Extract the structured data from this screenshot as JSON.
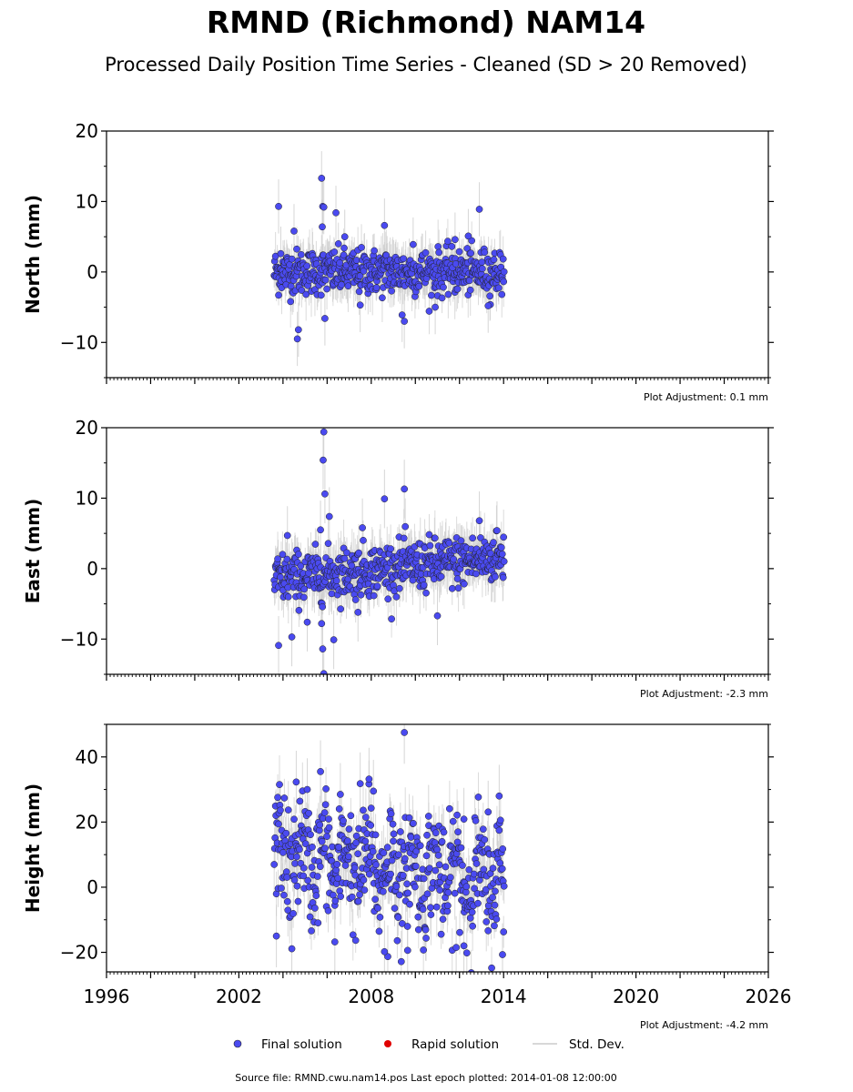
{
  "title": "RMND (Richmond) NAM14",
  "subtitle": "Processed Daily Position Time Series - Cleaned (SD > 20 Removed)",
  "footer": "Source file: RMND.cwu.nam14.pos  Last epoch plotted: 2014-01-08 12:00:00",
  "legend": {
    "final": "Final solution",
    "rapid": "Rapid solution",
    "std": "Std. Dev."
  },
  "colors": {
    "final": "#4a4af0",
    "rapid": "#e00000",
    "std": "#cccccc"
  },
  "chart_data": [
    {
      "type": "scatter",
      "ylabel": "North (mm)",
      "adjustment": "Plot Adjustment: 0.1 mm",
      "xlim": [
        1996,
        2026
      ],
      "ylim": [
        -15,
        20
      ],
      "yticks": [
        -10,
        0,
        10,
        20
      ],
      "xtick_labels": [],
      "data_range": [
        2003.6,
        2014.02
      ],
      "series": [
        {
          "name": "Final solution",
          "points": [
            [
              2003.8,
              9.3
            ],
            [
              2004.5,
              5.8
            ],
            [
              2004.7,
              -8.2
            ],
            [
              2004.65,
              -9.5
            ],
            [
              2005.75,
              13.3
            ],
            [
              2005.8,
              9.3
            ],
            [
              2005.85,
              9.2
            ],
            [
              2005.78,
              6.4
            ],
            [
              2005.9,
              -6.6
            ],
            [
              2006.4,
              8.4
            ],
            [
              2008.6,
              6.6
            ],
            [
              2009.4,
              -6.1
            ],
            [
              2009.5,
              -7.0
            ],
            [
              2012.9,
              8.9
            ],
            [
              2012.4,
              5.1
            ],
            [
              2006.8,
              5.0
            ],
            [
              2009.9,
              3.9
            ],
            [
              2011.8,
              4.6
            ],
            [
              2003.9,
              2.6
            ],
            [
              2007.5,
              -4.7
            ],
            [
              2010.9,
              -5.0
            ],
            [
              2013.3,
              -4.8
            ]
          ]
        }
      ]
    },
    {
      "type": "scatter",
      "ylabel": "East (mm)",
      "adjustment": "Plot Adjustment: -2.3 mm",
      "xlim": [
        1996,
        2026
      ],
      "ylim": [
        -15,
        20
      ],
      "yticks": [
        -10,
        0,
        10,
        20
      ],
      "xtick_labels": [],
      "data_range": [
        2003.6,
        2014.02
      ],
      "series": [
        {
          "name": "Final solution",
          "points": [
            [
              2005.85,
              19.4
            ],
            [
              2005.82,
              15.4
            ],
            [
              2005.9,
              10.6
            ],
            [
              2006.1,
              7.4
            ],
            [
              2005.7,
              5.5
            ],
            [
              2003.8,
              -10.9
            ],
            [
              2004.4,
              -9.7
            ],
            [
              2005.1,
              -7.6
            ],
            [
              2005.8,
              -11.4
            ],
            [
              2005.85,
              -14.9
            ],
            [
              2006.3,
              -10.1
            ],
            [
              2005.75,
              -7.8
            ],
            [
              2008.6,
              9.9
            ],
            [
              2009.5,
              11.3
            ],
            [
              2007.6,
              5.8
            ],
            [
              2011.0,
              -6.7
            ],
            [
              2004.2,
              4.7
            ],
            [
              2012.9,
              6.8
            ],
            [
              2013.7,
              5.4
            ],
            [
              2007.4,
              -6.2
            ]
          ]
        }
      ]
    },
    {
      "type": "scatter",
      "ylabel": "Height (mm)",
      "adjustment": "Plot Adjustment: -4.2 mm",
      "xlim": [
        1996,
        2026
      ],
      "ylim": [
        -26,
        50
      ],
      "yticks": [
        -20,
        0,
        20,
        40
      ],
      "xtick_labels": [
        "1996",
        "2002",
        "2008",
        "2014",
        "2020",
        "2026"
      ],
      "data_range": [
        2003.6,
        2014.02
      ],
      "series": [
        {
          "name": "Final solution",
          "points": [
            [
              2009.5,
              47.5
            ],
            [
              2005.7,
              35.5
            ],
            [
              2004.6,
              32.3
            ],
            [
              2007.9,
              33.2
            ],
            [
              2007.5,
              31.8
            ],
            [
              2013.8,
              28.0
            ],
            [
              2013.3,
              23.1
            ],
            [
              2003.8,
              19.4
            ],
            [
              2004.4,
              -18.9
            ],
            [
              2006.35,
              -16.8
            ],
            [
              2008.75,
              -21.3
            ],
            [
              2008.6,
              -19.8
            ],
            [
              2009.65,
              -19.4
            ],
            [
              2011.85,
              -18.5
            ],
            [
              2012.2,
              -18.0
            ],
            [
              2013.95,
              -20.7
            ],
            [
              2003.7,
              -15.0
            ],
            [
              2005.1,
              30.0
            ],
            [
              2006.6,
              28.5
            ],
            [
              2008.1,
              29.5
            ],
            [
              2010.6,
              21.8
            ],
            [
              2012.2,
              20.9
            ]
          ]
        }
      ]
    }
  ]
}
